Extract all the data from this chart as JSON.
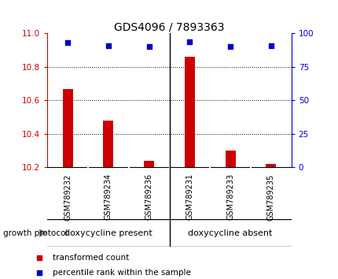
{
  "title": "GDS4096 / 7893363",
  "categories": [
    "GSM789232",
    "GSM789234",
    "GSM789236",
    "GSM789231",
    "GSM789233",
    "GSM789235"
  ],
  "bar_values": [
    10.67,
    10.48,
    10.24,
    10.86,
    10.3,
    10.22
  ],
  "percentile_values": [
    93,
    91,
    90,
    94,
    90,
    91
  ],
  "ylim_left": [
    10.2,
    11.0
  ],
  "ylim_right": [
    0,
    100
  ],
  "yticks_left": [
    10.2,
    10.4,
    10.6,
    10.8,
    11.0
  ],
  "yticks_right": [
    0,
    25,
    50,
    75,
    100
  ],
  "bar_color": "#cc0000",
  "dot_color": "#0000cc",
  "bg_color": "#ffffff",
  "tick_color_left": "#cc0000",
  "tick_color_right": "#0000cc",
  "group1_label": "doxycycline present",
  "group2_label": "doxycycline absent",
  "group_bg_color": "#66dd66",
  "xlabel_bg_color": "#cccccc",
  "protocol_label": "growth protocol",
  "legend_bar_label": "transformed count",
  "legend_dot_label": "percentile rank within the sample",
  "bar_width": 0.25,
  "xticklabel_fontsize": 7,
  "yticklabel_fontsize": 7.5,
  "title_fontsize": 10,
  "group_fontsize": 8,
  "legend_fontsize": 7.5
}
